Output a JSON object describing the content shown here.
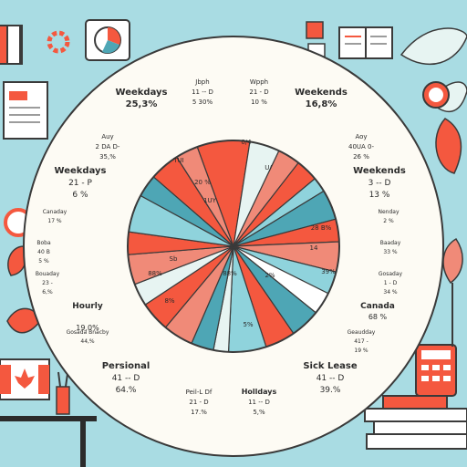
{
  "colors": {
    "background": "#a9dce3",
    "red": "#f4583f",
    "coral": "#f08a78",
    "teal": "#4ea6b5",
    "light_teal": "#8fd3dc",
    "pale": "#e7f4f2",
    "white": "#ffffff",
    "dark": "#2b2b2b",
    "outline": "#3a3a3a"
  },
  "decor_icons": [
    "flag-icon",
    "gear-icon",
    "pie-chart-icon",
    "calendar-icon",
    "open-book-icon",
    "leaf-icon",
    "clipboard-report-icon",
    "magnifier-icon",
    "alarm-clock-icon",
    "canada-flag-monitor-icon",
    "desk-icon",
    "calculator-icon",
    "books-stack-icon",
    "pencil-cup-icon",
    "plant-icon",
    "sparkle-icon"
  ],
  "chart_data": {
    "type": "pie",
    "title": "",
    "slices": [
      {
        "label": "Weekdays",
        "value": 7
      },
      {
        "label": "Weekends",
        "value": 4
      },
      {
        "label": "Weekdays",
        "value": 3
      },
      {
        "label": "Weekends",
        "value": 3
      },
      {
        "label": "Canada",
        "value": 2
      },
      {
        "label": "Personal",
        "value": 4
      },
      {
        "label": "Holidays",
        "value": 3
      },
      {
        "label": "Sick Leave",
        "value": 4
      },
      {
        "label": "Hourly",
        "value": 3
      },
      {
        "label": "Personal",
        "value": 3
      },
      {
        "label": "Weekends",
        "value": 4
      },
      {
        "label": "Canada",
        "value": 4
      },
      {
        "label": "Weekdays",
        "value": 5
      },
      {
        "label": "Holiday",
        "value": 2
      },
      {
        "label": "Weekends",
        "value": 3
      },
      {
        "label": "Sick Leave",
        "value": 4
      },
      {
        "label": "Personal",
        "value": 4
      },
      {
        "label": "Holidays",
        "value": 3
      },
      {
        "label": "Hourly",
        "value": 4
      },
      {
        "label": "Canada",
        "value": 3
      },
      {
        "label": "Weekdays",
        "value": 5
      },
      {
        "label": "Weekends",
        "value": 3
      },
      {
        "label": "Personal",
        "value": 4
      },
      {
        "label": "Holiday",
        "value": 3
      }
    ],
    "slice_texts": [
      "TUI",
      "20 %",
      "1UY",
      "0/4",
      "U/",
      "28 B%",
      "14",
      "39%",
      "5%",
      "8%",
      "88%",
      "2%",
      "88%",
      "Sb"
    ],
    "labels": [
      {
        "id": "weekdays-top",
        "lines": [
          "Weekdays",
          "25,3%"
        ],
        "bold": [
          true,
          true
        ]
      },
      {
        "id": "jbph",
        "lines": [
          "Jbph",
          "11 -- D",
          "5 30%"
        ],
        "bold": [
          false,
          false,
          false
        ]
      },
      {
        "id": "wpph",
        "lines": [
          "Wpph",
          "21 - D",
          "10 %"
        ],
        "bold": [
          false,
          false,
          false
        ]
      },
      {
        "id": "weekends-top",
        "lines": [
          "Weekends",
          "16,8%"
        ],
        "bold": [
          true,
          true
        ]
      },
      {
        "id": "auy-left",
        "lines": [
          "Auy",
          "2 DA D-",
          "35,%"
        ],
        "bold": [
          false,
          false,
          false
        ]
      },
      {
        "id": "aoy-right",
        "lines": [
          "Aoy",
          "40UA 0-",
          "26 %"
        ],
        "bold": [
          false,
          false,
          false
        ]
      },
      {
        "id": "weekdays-left",
        "lines": [
          "Weekdays",
          "21 - P",
          "6 %"
        ],
        "bold": [
          true,
          false,
          false
        ]
      },
      {
        "id": "weekends-right",
        "lines": [
          "Weekends",
          "3 -- D",
          "13 %"
        ],
        "bold": [
          true,
          false,
          false
        ]
      },
      {
        "id": "canaday",
        "lines": [
          "Canaday",
          "17 %"
        ],
        "bold": [
          false,
          false
        ]
      },
      {
        "id": "nenday",
        "lines": [
          "Nenday",
          "2 %"
        ],
        "bold": [
          false,
          false
        ]
      },
      {
        "id": "boba",
        "lines": [
          "Boba",
          "40 B",
          "5 %"
        ],
        "bold": [
          false,
          false,
          false
        ]
      },
      {
        "id": "baaday",
        "lines": [
          "Baaday",
          "33 %"
        ],
        "bold": [
          false,
          false
        ]
      },
      {
        "id": "bouaday",
        "lines": [
          "Bouaday",
          "23 -",
          "6,%"
        ],
        "bold": [
          false,
          false,
          false
        ]
      },
      {
        "id": "gosaday",
        "lines": [
          "Gosaday",
          "1 - D",
          "34 %"
        ],
        "bold": [
          false,
          false,
          false
        ]
      },
      {
        "id": "hourly",
        "lines": [
          "Hourly",
          "",
          "19,0%"
        ],
        "bold": [
          true,
          false,
          false
        ]
      },
      {
        "id": "canada",
        "lines": [
          "Canada",
          "68 %"
        ],
        "bold": [
          true,
          false
        ]
      },
      {
        "id": "gosada-bnacby",
        "lines": [
          "Gosada Bnacby",
          "44,%"
        ],
        "bold": [
          false,
          false
        ]
      },
      {
        "id": "geaudday",
        "lines": [
          "Geaudday",
          "417 -",
          "19 %"
        ],
        "bold": [
          false,
          false,
          false
        ]
      },
      {
        "id": "personal",
        "lines": [
          "Persional",
          "41 -- D",
          "64.%"
        ],
        "bold": [
          true,
          false,
          false
        ]
      },
      {
        "id": "sick-leave",
        "lines": [
          "Sick Lease",
          "41 -- D",
          "39.%"
        ],
        "bold": [
          true,
          false,
          false
        ]
      },
      {
        "id": "peil-df",
        "lines": [
          "Peil-L Df",
          "21 - D",
          "17.%"
        ],
        "bold": [
          false,
          false,
          false
        ]
      },
      {
        "id": "holidays",
        "lines": [
          "Holldays",
          "11 -- D",
          "5,%"
        ],
        "bold": [
          true,
          false,
          false
        ]
      }
    ]
  }
}
